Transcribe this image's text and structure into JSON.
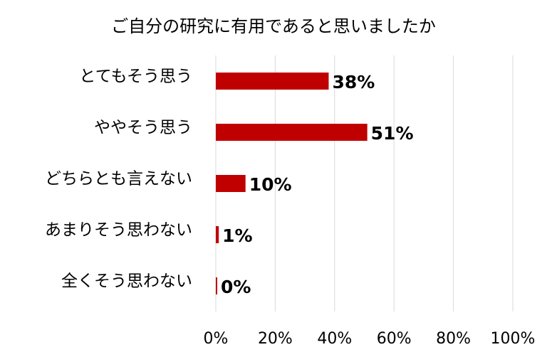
{
  "chart_data": {
    "type": "bar",
    "orientation": "horizontal",
    "title": "ご自分の研究に有用であると思いましたか",
    "categories": [
      "とてもそう思う",
      "ややそう思う",
      "どちらとも言えない",
      "あまりそう思わない",
      "全くそう思わない"
    ],
    "values": [
      38,
      51,
      10,
      1,
      0
    ],
    "value_labels": [
      "38%",
      "51%",
      "10%",
      "1%",
      "0%"
    ],
    "color": "#c00000",
    "xlim": [
      0,
      100
    ],
    "xticks": [
      {
        "value": 0,
        "label": "0%"
      },
      {
        "value": 20,
        "label": "20%"
      },
      {
        "value": 40,
        "label": "40%"
      },
      {
        "value": 60,
        "label": "60%"
      },
      {
        "value": 80,
        "label": "80%"
      },
      {
        "value": 100,
        "label": "100%"
      }
    ],
    "grid": true
  }
}
